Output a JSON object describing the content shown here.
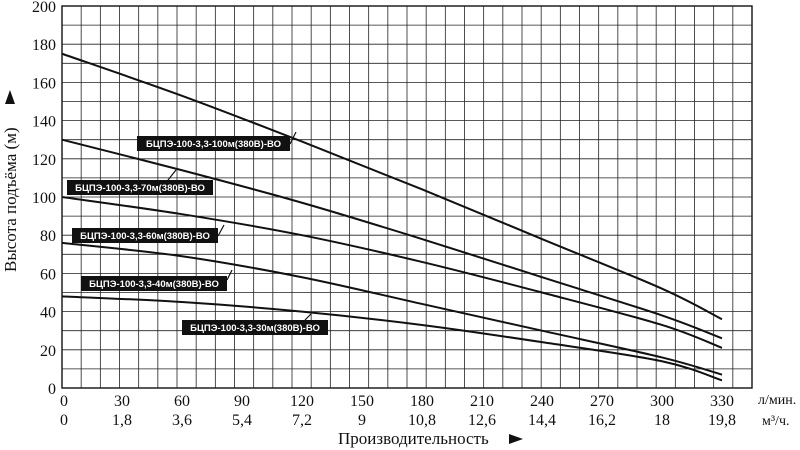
{
  "chart_data": {
    "type": "line",
    "title": "",
    "xlabel": "Производительность",
    "ylabel": "Высота подъёма (м)",
    "x_unit_primary": "л/мин.",
    "x_unit_secondary": "м³/ч.",
    "x_ticks_primary": [
      "0",
      "30",
      "60",
      "90",
      "120",
      "150",
      "180",
      "210",
      "240",
      "270",
      "300",
      "330"
    ],
    "x_ticks_secondary": [
      "0",
      "1,8",
      "3,6",
      "5,4",
      "7,2",
      "9",
      "10,8",
      "12,6",
      "14,4",
      "16,2",
      "18",
      "19,8"
    ],
    "y_ticks": [
      "0",
      "20",
      "40",
      "60",
      "80",
      "100",
      "120",
      "140",
      "160",
      "180",
      "200"
    ],
    "xlim": [
      0,
      345
    ],
    "ylim": [
      0,
      200
    ],
    "grid": true,
    "legend": "none",
    "series": [
      {
        "name": "БЦПЭ-100-3,3-100м(380В)-ВО",
        "x": [
          0,
          60,
          120,
          180,
          240,
          300,
          330
        ],
        "y": [
          175,
          153,
          129,
          104,
          78,
          52,
          36
        ]
      },
      {
        "name": "БЦПЭ-100-3,3-70м(380В)-ВО",
        "x": [
          0,
          60,
          120,
          180,
          240,
          300,
          330
        ],
        "y": [
          130,
          114,
          97,
          78,
          58,
          38,
          26
        ]
      },
      {
        "name": "БЦПЭ-100-3,3-60м(380В)-ВО",
        "x": [
          0,
          60,
          120,
          180,
          240,
          300,
          330
        ],
        "y": [
          100,
          91,
          80,
          66,
          50,
          33,
          21
        ]
      },
      {
        "name": "БЦПЭ-100-3,3-40м(380В)-ВО",
        "x": [
          0,
          60,
          120,
          180,
          240,
          300,
          330
        ],
        "y": [
          76,
          69,
          58,
          44,
          30,
          16,
          7
        ]
      },
      {
        "name": "БЦПЭ-100-3,3-30м(380В)-ВО",
        "x": [
          0,
          60,
          120,
          180,
          240,
          300,
          330
        ],
        "y": [
          48,
          45,
          40,
          33,
          24,
          14,
          4
        ]
      }
    ]
  }
}
